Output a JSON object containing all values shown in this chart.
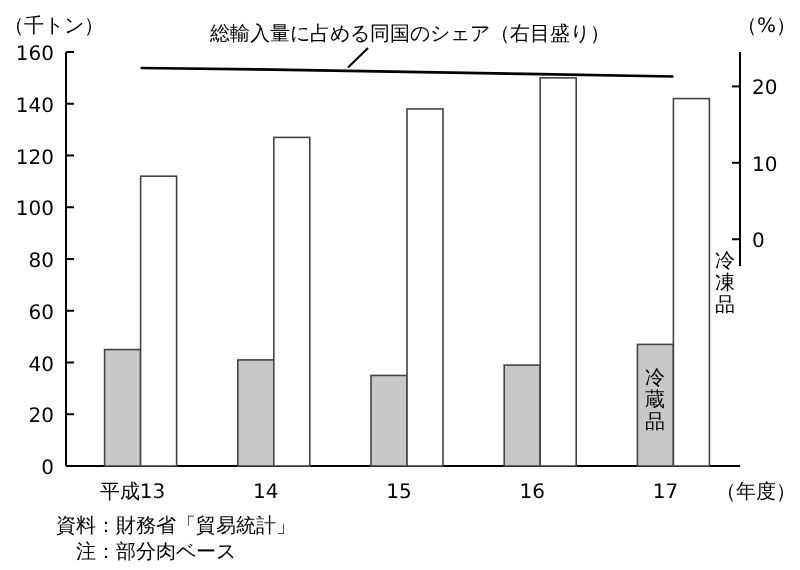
{
  "chart_data": {
    "type": "bar",
    "categories": [
      "平成13",
      "14",
      "15",
      "16",
      "17"
    ],
    "series": [
      {
        "name": "冷蔵品",
        "color": "#c8c8c8",
        "values": [
          45,
          41,
          35,
          39,
          47
        ]
      },
      {
        "name": "冷凍品",
        "color": "#ffffff",
        "values": [
          112,
          127,
          138,
          150,
          142
        ]
      },
      {
        "name": "総輸入量に占める同国のシェア（右目盛り）",
        "type": "line",
        "axis": "y2",
        "color": "#000000",
        "values": [
          22.4,
          22.2,
          21.9,
          21.6,
          21.3
        ]
      }
    ],
    "ylim": [
      0,
      160
    ],
    "yticks": [
      0,
      20,
      40,
      60,
      80,
      100,
      120,
      140,
      160
    ],
    "y2lim": [
      -3.5,
      24.5
    ],
    "y2ticks": [
      0,
      10,
      20
    ],
    "xlabel": "（年度）",
    "ylabel": "（千トン）",
    "y2label": "（%）",
    "annotations": [
      "資料：財務省「貿易統計」",
      "注：部分肉ベース"
    ]
  }
}
